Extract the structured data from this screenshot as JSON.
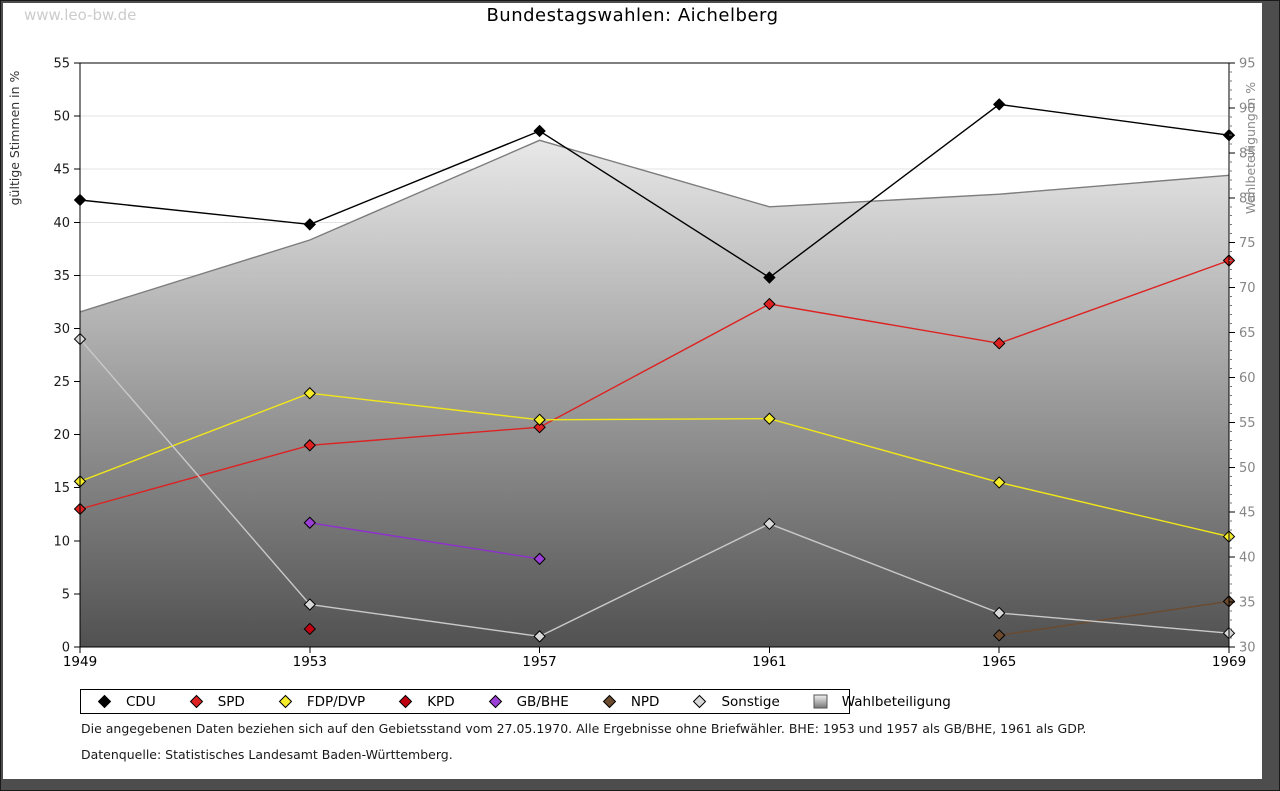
{
  "page": {
    "watermark": "www.leo-bw.de",
    "title": "Bundestagswahlen: Aichelberg",
    "notes": [
      "Die angegebenen Daten beziehen sich auf den Gebietsstand vom 27.05.1970. Alle Ergebnisse ohne Briefwähler. BHE: 1953 und 1957 als GB/BHE, 1961 als GDP.",
      "Datenquelle: Statistisches Landesamt Baden-Württemberg."
    ]
  },
  "chart_data": {
    "type": "line",
    "title": "Bundestagswahlen: Aichelberg",
    "x": [
      1949,
      1953,
      1957,
      1961,
      1965,
      1969
    ],
    "x_labels": [
      "1949",
      "1953",
      "1957",
      "1961",
      "1965",
      "1969"
    ],
    "y_left": {
      "label": "gültige Stimmen in %",
      "min": 0,
      "max": 55,
      "step": 5
    },
    "y_right": {
      "label": "Wahlbeteiligung in %",
      "min": 30,
      "max": 95,
      "step": 5,
      "minor_step": 1
    },
    "grid": "horizontal-major",
    "series": [
      {
        "name": "CDU",
        "color": "#000000",
        "marker_fill": "#000000",
        "axis": "left",
        "values": [
          42.1,
          39.8,
          48.6,
          34.8,
          51.1,
          48.2
        ]
      },
      {
        "name": "SPD",
        "color": "#dd2222",
        "marker_fill": "#dd2222",
        "axis": "left",
        "values": [
          13.0,
          19.0,
          20.7,
          32.3,
          28.6,
          36.4
        ]
      },
      {
        "name": "FDP/DVP",
        "color": "#f2e718",
        "marker_fill": "#f6ec2a",
        "axis": "left",
        "values": [
          15.6,
          23.9,
          21.4,
          21.5,
          15.5,
          10.4
        ]
      },
      {
        "name": "KPD",
        "color": "#c00011",
        "marker_fill": "#c00011",
        "axis": "left",
        "values": [
          null,
          1.7,
          null,
          null,
          null,
          null
        ]
      },
      {
        "name": "GB/BHE",
        "color": "#8f2fd0",
        "marker_fill": "#9b3fd6",
        "axis": "left",
        "values": [
          null,
          11.7,
          8.3,
          null,
          null,
          null
        ]
      },
      {
        "name": "NPD",
        "color": "#6b4a2e",
        "marker_fill": "#6b4a2e",
        "axis": "left",
        "values": [
          null,
          null,
          null,
          null,
          1.1,
          4.3
        ]
      },
      {
        "name": "Sonstige",
        "color": "#c9c9c9",
        "marker_fill": "#d8d8d8",
        "axis": "left",
        "values": [
          29.0,
          4.0,
          1.0,
          11.6,
          3.2,
          1.3
        ]
      }
    ],
    "area_series": {
      "name": "Wahlbeteiligung",
      "axis": "right",
      "values": [
        67.3,
        75.3,
        86.4,
        79.0,
        80.4,
        82.5
      ],
      "edge_color": "#7d7d7d",
      "gradient_top": "#ffffff",
      "gradient_bottom": "#515151"
    },
    "legend": {
      "position": "bottom",
      "items": [
        {
          "label": "CDU",
          "marker": "diamond",
          "color": "#000000"
        },
        {
          "label": "SPD",
          "marker": "diamond",
          "color": "#dd2222"
        },
        {
          "label": "FDP/DVP",
          "marker": "diamond",
          "color": "#f6ec2a"
        },
        {
          "label": "KPD",
          "marker": "diamond",
          "color": "#c00011"
        },
        {
          "label": "GB/BHE",
          "marker": "diamond",
          "color": "#9b3fd6"
        },
        {
          "label": "NPD",
          "marker": "diamond",
          "color": "#6b4a2e"
        },
        {
          "label": "Sonstige",
          "marker": "diamond",
          "color": "#d8d8d8"
        },
        {
          "label": "Wahlbeteiligung",
          "marker": "square",
          "color": "gradient"
        }
      ]
    },
    "axis_colors": {
      "left_text": "#1a1a1a",
      "right_text": "#868686",
      "grid": "#e3e3e3",
      "frame": "#000000"
    }
  }
}
